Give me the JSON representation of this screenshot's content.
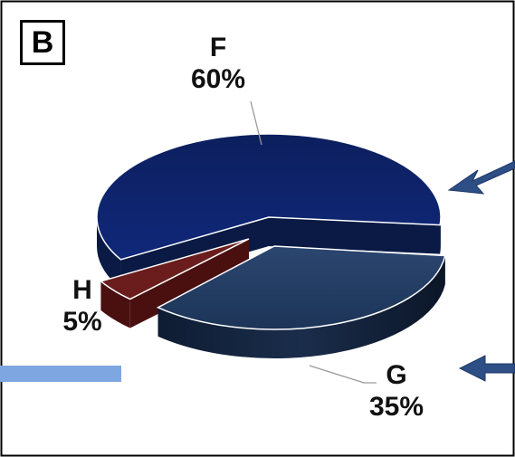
{
  "panel": {
    "label": "B"
  },
  "chart_data": {
    "type": "pie",
    "style": "3d-exploded",
    "title": "",
    "slices": [
      {
        "name": "F",
        "value": 60,
        "label": "60%",
        "color": "#0d2460"
      },
      {
        "name": "G",
        "value": 35,
        "label": "35%",
        "color": "#1f3a5f"
      },
      {
        "name": "H",
        "value": 5,
        "label": "5%",
        "color": "#6b1d1d"
      }
    ],
    "legend": "none"
  },
  "colors": {
    "frame": "#000000",
    "arrow": "#2e4f86",
    "arrow_dark": "#1c3566",
    "callout_bar": "#7ea6e0",
    "leader": "#9a9a9a"
  }
}
